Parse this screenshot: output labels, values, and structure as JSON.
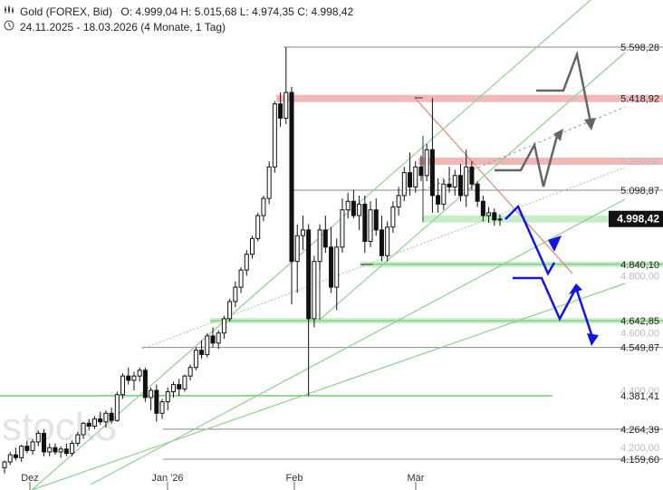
{
  "header": {
    "instrument": "Gold (FOREX, Bid)",
    "ohlc": "O: 4.999,04  H: 5.015,68  L: 4.974,35  C: 4.998,42",
    "range": "24.11.2025 - 18.03.2026  (4 Monate, 1 Tag)",
    "chart_icon": "candlestick-icon",
    "time_icon": "clock-icon"
  },
  "watermark": "stock3",
  "colors": {
    "background": "#ffffff",
    "candle": "#111111",
    "support_line": "#77c777",
    "support_band": "#c9ecc9",
    "resistance_band": "#f2b8b8",
    "downtrend": "#dd8877",
    "bear_arrow": "#1414e6",
    "bull_arrow": "#666666",
    "current_price_tag": "#111111"
  },
  "chart_data": {
    "type": "candlestick",
    "title": "Gold (FOREX, Bid)",
    "x_tick_labels": [
      "Dez",
      "Jan '26",
      "Feb",
      "Mär"
    ],
    "y_axis_labels": [
      "5.598,28",
      "5.418,92",
      "5.200,00",
      "5.098,87",
      "4.998,42",
      "4.840,10",
      "4.800,00",
      "4.642,85",
      "4.600,00",
      "4.549,87",
      "4.400,00",
      "4.381,41",
      "4.264,39",
      "4.200,00",
      "4.159,60"
    ],
    "levels": [
      {
        "value": 5598.28,
        "label": "5.598,28",
        "kind": "high"
      },
      {
        "value": 5418.92,
        "label": "5.418,92",
        "kind": "resistance"
      },
      {
        "value": 5200.0,
        "label": "5.200,00",
        "kind": "grid"
      },
      {
        "value": 5098.87,
        "label": "5.098,87",
        "kind": "level"
      },
      {
        "value": 4998.42,
        "label": "4.998,42",
        "kind": "current"
      },
      {
        "value": 4840.1,
        "label": "4.840,10",
        "kind": "support"
      },
      {
        "value": 4800.0,
        "label": "4.800,00",
        "kind": "grid"
      },
      {
        "value": 4642.85,
        "label": "4.642,85",
        "kind": "support"
      },
      {
        "value": 4600.0,
        "label": "4.600,00",
        "kind": "grid"
      },
      {
        "value": 4549.87,
        "label": "4.549,87",
        "kind": "level"
      },
      {
        "value": 4400.0,
        "label": "4.400,00",
        "kind": "grid"
      },
      {
        "value": 4381.41,
        "label": "4.381,41",
        "kind": "support"
      },
      {
        "value": 4264.39,
        "label": "4.264,39",
        "kind": "level"
      },
      {
        "value": 4200.0,
        "label": "4.200,00",
        "kind": "grid"
      },
      {
        "value": 4159.6,
        "label": "4.159,60",
        "kind": "level"
      }
    ],
    "candles": [
      [
        4130,
        4155,
        4110,
        4150
      ],
      [
        4150,
        4185,
        4140,
        4175
      ],
      [
        4175,
        4200,
        4155,
        4165
      ],
      [
        4165,
        4210,
        4150,
        4205
      ],
      [
        4205,
        4225,
        4180,
        4190
      ],
      [
        4190,
        4230,
        4175,
        4220
      ],
      [
        4220,
        4260,
        4205,
        4250
      ],
      [
        4250,
        4265,
        4170,
        4185
      ],
      [
        4185,
        4215,
        4170,
        4200
      ],
      [
        4200,
        4215,
        4175,
        4185
      ],
      [
        4185,
        4205,
        4165,
        4195
      ],
      [
        4195,
        4215,
        4170,
        4180
      ],
      [
        4180,
        4225,
        4170,
        4215
      ],
      [
        4215,
        4255,
        4205,
        4245
      ],
      [
        4245,
        4290,
        4230,
        4285
      ],
      [
        4285,
        4300,
        4260,
        4275
      ],
      [
        4275,
        4310,
        4265,
        4300
      ],
      [
        4300,
        4325,
        4280,
        4290
      ],
      [
        4290,
        4330,
        4270,
        4320
      ],
      [
        4320,
        4340,
        4285,
        4295
      ],
      [
        4295,
        4395,
        4290,
        4385
      ],
      [
        4385,
        4460,
        4370,
        4450
      ],
      [
        4450,
        4480,
        4420,
        4435
      ],
      [
        4435,
        4465,
        4400,
        4450
      ],
      [
        4450,
        4480,
        4430,
        4470
      ],
      [
        4470,
        4480,
        4360,
        4375
      ],
      [
        4375,
        4410,
        4330,
        4400
      ],
      [
        4400,
        4420,
        4290,
        4320
      ],
      [
        4320,
        4370,
        4300,
        4360
      ],
      [
        4360,
        4410,
        4330,
        4395
      ],
      [
        4395,
        4430,
        4375,
        4420
      ],
      [
        4420,
        4440,
        4380,
        4405
      ],
      [
        4405,
        4455,
        4395,
        4450
      ],
      [
        4450,
        4490,
        4435,
        4480
      ],
      [
        4480,
        4550,
        4470,
        4540
      ],
      [
        4540,
        4575,
        4510,
        4525
      ],
      [
        4525,
        4600,
        4515,
        4590
      ],
      [
        4590,
        4620,
        4550,
        4565
      ],
      [
        4565,
        4610,
        4545,
        4600
      ],
      [
        4600,
        4660,
        4580,
        4650
      ],
      [
        4650,
        4720,
        4640,
        4710
      ],
      [
        4710,
        4780,
        4690,
        4760
      ],
      [
        4760,
        4830,
        4740,
        4820
      ],
      [
        4820,
        4890,
        4800,
        4875
      ],
      [
        4875,
        4940,
        4860,
        4930
      ],
      [
        4930,
        5020,
        4920,
        5010
      ],
      [
        5010,
        5080,
        4990,
        5070
      ],
      [
        5070,
        5200,
        5050,
        5180
      ],
      [
        5180,
        5410,
        5160,
        5400
      ],
      [
        5400,
        5440,
        5320,
        5350
      ],
      [
        5350,
        5598,
        5330,
        5440
      ],
      [
        5440,
        5460,
        4700,
        4850
      ],
      [
        4850,
        4980,
        4740,
        4940
      ],
      [
        4940,
        5010,
        4890,
        4960
      ],
      [
        4960,
        4980,
        4380,
        4650
      ],
      [
        4650,
        4870,
        4620,
        4850
      ],
      [
        4850,
        4980,
        4820,
        4960
      ],
      [
        4960,
        5010,
        4880,
        4900
      ],
      [
        4900,
        4970,
        4740,
        4760
      ],
      [
        4760,
        4930,
        4680,
        4900
      ],
      [
        4900,
        5070,
        4880,
        5030
      ],
      [
        5030,
        5090,
        5000,
        5060
      ],
      [
        5060,
        5100,
        5000,
        5010
      ],
      [
        5010,
        5080,
        4960,
        5050
      ],
      [
        5050,
        5080,
        4880,
        4920
      ],
      [
        4920,
        5060,
        4900,
        5030
      ],
      [
        5030,
        5070,
        4940,
        4960
      ],
      [
        4960,
        5010,
        4850,
        4870
      ],
      [
        4870,
        4990,
        4850,
        4970
      ],
      [
        4970,
        5060,
        4950,
        5040
      ],
      [
        5040,
        5110,
        5010,
        5080
      ],
      [
        5080,
        5180,
        5060,
        5160
      ],
      [
        5160,
        5230,
        5080,
        5110
      ],
      [
        5110,
        5200,
        5090,
        5180
      ],
      [
        5180,
        5220,
        5130,
        5150
      ],
      [
        5150,
        5260,
        5130,
        5240
      ],
      [
        5240,
        5420,
        5020,
        5080
      ],
      [
        5080,
        5140,
        5020,
        5050
      ],
      [
        5050,
        5140,
        5030,
        5120
      ],
      [
        5120,
        5180,
        5090,
        5110
      ],
      [
        5110,
        5170,
        5080,
        5150
      ],
      [
        5150,
        5190,
        5060,
        5080
      ],
      [
        5080,
        5240,
        5040,
        5180
      ],
      [
        5180,
        5200,
        5100,
        5120
      ],
      [
        5120,
        5130,
        5040,
        5060
      ],
      [
        5060,
        5080,
        4990,
        5010
      ],
      [
        5010,
        5040,
        4985,
        5020
      ],
      [
        5020,
        5035,
        4975,
        4995
      ],
      [
        4995,
        5015,
        4974,
        4998
      ]
    ],
    "projections": [
      {
        "name": "bear",
        "color": "blue",
        "points": [
          [
            5020,
            0
          ],
          [
            4840,
            0
          ],
          [
            4890,
            0
          ],
          [
            4800,
            0
          ],
          [
            4770,
            0
          ],
          [
            4640,
            0
          ],
          [
            4760,
            0
          ],
          [
            4555,
            0
          ]
        ]
      },
      {
        "name": "bull",
        "color": "gray",
        "points": [
          [
            5140,
            0
          ],
          [
            5140,
            0
          ],
          [
            5180,
            0
          ],
          [
            5100,
            0
          ],
          [
            5250,
            0
          ]
        ]
      },
      {
        "name": "bull-upper",
        "color": "gray",
        "points": [
          [
            5440,
            0
          ],
          [
            5440,
            0
          ],
          [
            5520,
            0
          ],
          [
            5370,
            0
          ]
        ]
      }
    ],
    "grid": false,
    "legend": "none"
  }
}
